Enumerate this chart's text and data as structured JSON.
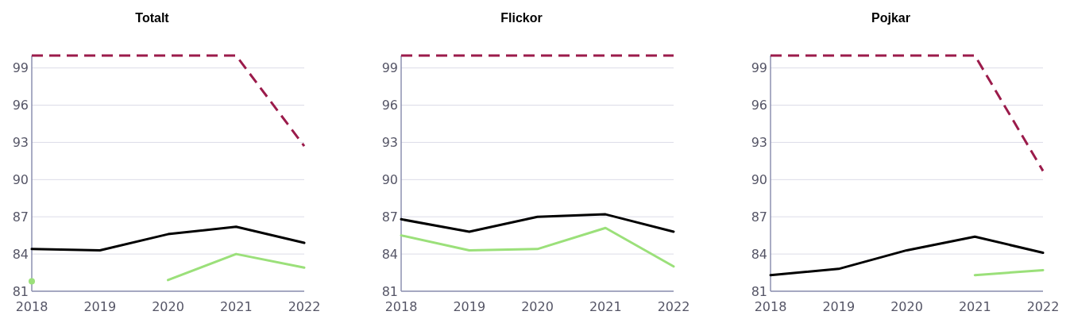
{
  "chart_data": [
    {
      "type": "line",
      "title": "Totalt",
      "categories": [
        "2018",
        "2019",
        "2020",
        "2021",
        "2022"
      ],
      "ylim": [
        81,
        100
      ],
      "yticks": [
        81,
        84,
        87,
        90,
        93,
        96,
        99
      ],
      "grid": "y",
      "series": [
        {
          "color": "#9b1b4b",
          "line_style": "dashed",
          "values": [
            100,
            100,
            100,
            100,
            92.7
          ]
        },
        {
          "color": "#000000",
          "values": [
            84.4,
            84.3,
            85.6,
            86.2,
            84.9
          ]
        },
        {
          "color": "#9be07a",
          "values": [
            81.8,
            null,
            81.9,
            84.0,
            82.9
          ]
        }
      ]
    },
    {
      "type": "line",
      "title": "Flickor",
      "categories": [
        "2018",
        "2019",
        "2020",
        "2021",
        "2022"
      ],
      "ylim": [
        81,
        100
      ],
      "yticks": [
        81,
        84,
        87,
        90,
        93,
        96,
        99
      ],
      "grid": "y",
      "series": [
        {
          "color": "#9b1b4b",
          "line_style": "dashed",
          "values": [
            100,
            100,
            100,
            100,
            100
          ]
        },
        {
          "color": "#000000",
          "values": [
            86.8,
            85.8,
            87.0,
            87.2,
            85.8
          ]
        },
        {
          "color": "#9be07a",
          "values": [
            85.5,
            84.3,
            84.4,
            86.1,
            83.0
          ]
        }
      ]
    },
    {
      "type": "line",
      "title": "Pojkar",
      "categories": [
        "2018",
        "2019",
        "2020",
        "2021",
        "2022"
      ],
      "ylim": [
        81,
        100
      ],
      "yticks": [
        81,
        84,
        87,
        90,
        93,
        96,
        99
      ],
      "grid": "y",
      "series": [
        {
          "color": "#9b1b4b",
          "line_style": "dashed",
          "values": [
            100,
            100,
            100,
            100,
            90.7
          ]
        },
        {
          "color": "#000000",
          "values": [
            82.3,
            82.8,
            84.3,
            85.4,
            84.1
          ]
        },
        {
          "color": "#9be07a",
          "values": [
            null,
            null,
            null,
            82.3,
            82.7
          ]
        }
      ]
    }
  ]
}
